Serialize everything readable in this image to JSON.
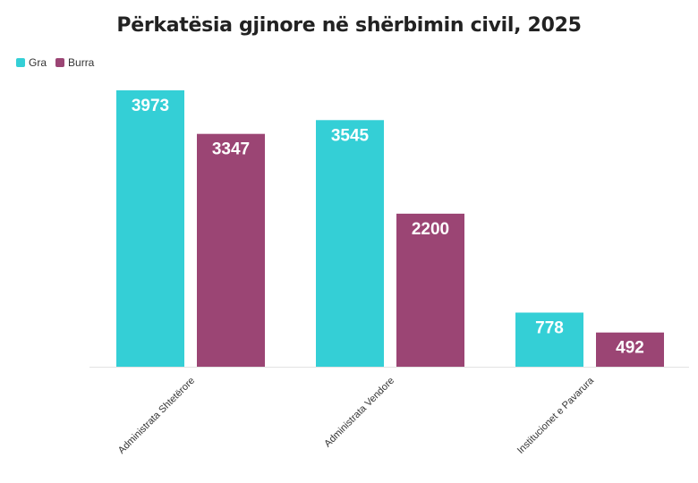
{
  "chart_data": {
    "type": "bar",
    "title": "Përkatësia gjinore në shërbimin civil, 2025",
    "xlabel": "",
    "ylabel": "",
    "categories": [
      "Administrata Shtetërore",
      "Administrata Vendore",
      "Institucionet e Pavarura"
    ],
    "series": [
      {
        "name": "Gra",
        "color": "#34cfd6",
        "values": [
          3973,
          3545,
          778
        ]
      },
      {
        "name": "Burra",
        "color": "#9b4574",
        "values": [
          3347,
          2200,
          492
        ]
      }
    ],
    "ylim": [
      0,
      3973
    ],
    "grid": false,
    "legend_position": "top-left",
    "data_labels": true
  }
}
